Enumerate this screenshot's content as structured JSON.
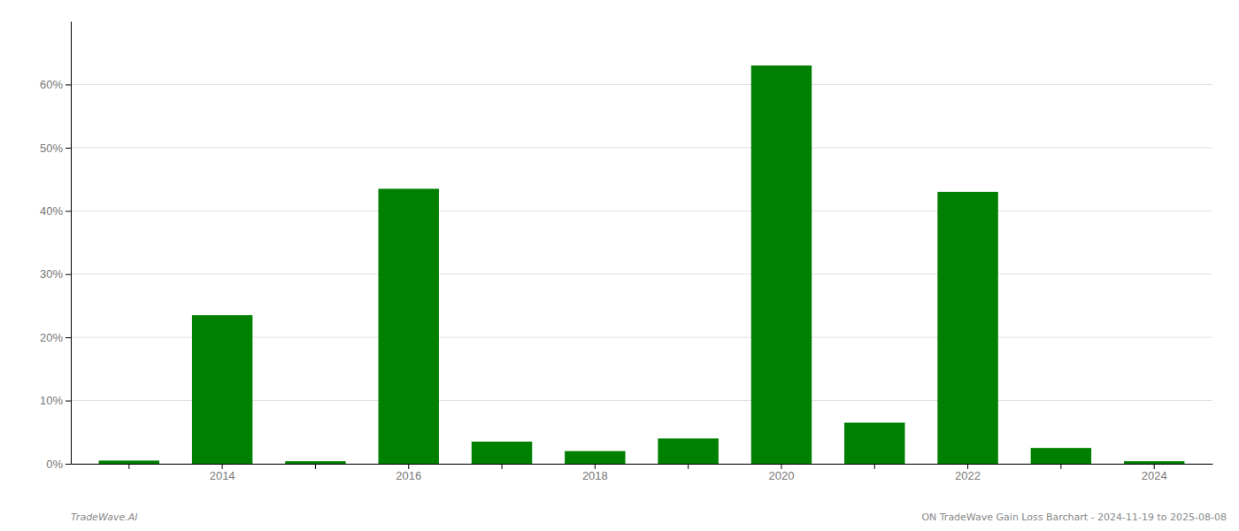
{
  "chart_data": {
    "type": "bar",
    "categories": [
      null,
      "2014",
      null,
      "2016",
      null,
      "2018",
      null,
      "2020",
      null,
      "2022",
      null,
      "2024"
    ],
    "values": [
      0.005,
      0.235,
      0.004,
      0.435,
      0.035,
      0.02,
      0.04,
      0.63,
      0.065,
      0.43,
      0.025,
      0.004
    ],
    "color": "#008000",
    "ylim": [
      0,
      0.7
    ],
    "yticks": [
      {
        "value": 0.0,
        "label": "0%"
      },
      {
        "value": 0.1,
        "label": "10%"
      },
      {
        "value": 0.2,
        "label": "20%"
      },
      {
        "value": 0.3,
        "label": "30%"
      },
      {
        "value": 0.4,
        "label": "40%"
      },
      {
        "value": 0.5,
        "label": "50%"
      },
      {
        "value": 0.6,
        "label": "60%"
      }
    ],
    "grid": true,
    "annotations": [
      "TradeWave.AI",
      "ON TradeWave Gain Loss Barchart - 2024-11-19 to 2025-08-08"
    ]
  }
}
